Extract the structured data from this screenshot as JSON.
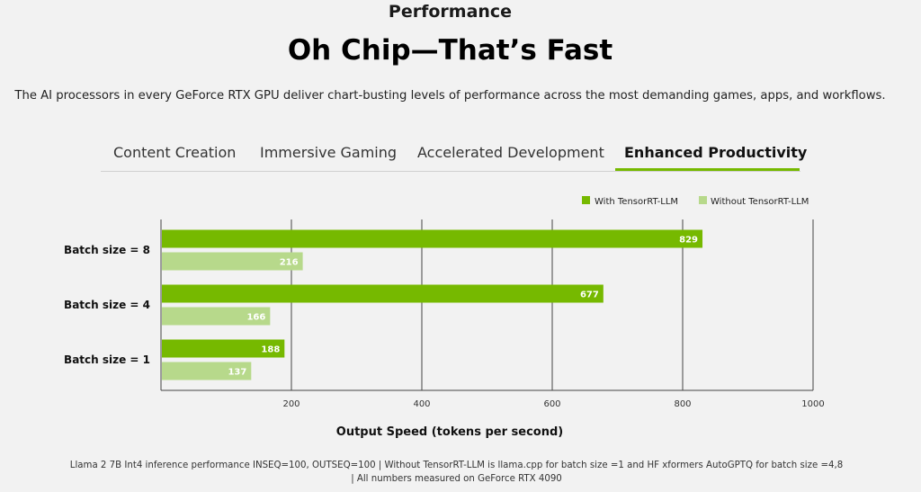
{
  "header": {
    "kicker": "Performance",
    "title": "Oh Chip—That’s Fast",
    "intro": "The AI processors in every GeForce RTX GPU deliver chart-busting levels of performance across the most demanding games, apps, and workflows."
  },
  "tabs": [
    {
      "label": "Content Creation",
      "active": false
    },
    {
      "label": "Immersive Gaming",
      "active": false
    },
    {
      "label": "Accelerated Development",
      "active": false
    },
    {
      "label": "Enhanced Productivity",
      "active": true
    }
  ],
  "colors": {
    "accent": "#76b900",
    "with": "#76b900",
    "without": "#b7d98b",
    "grid": "#444444"
  },
  "chart_data": {
    "type": "bar",
    "orientation": "horizontal",
    "categories": [
      "Batch size = 8",
      "Batch size = 4",
      "Batch size = 1"
    ],
    "series": [
      {
        "name": "With TensorRT-LLM",
        "values": [
          829,
          677,
          188
        ]
      },
      {
        "name": "Without TensorRT-LLM",
        "values": [
          216,
          166,
          137
        ]
      }
    ],
    "xlabel": "Output Speed (tokens per second)",
    "ylabel": "",
    "xlim": [
      0,
      1000
    ],
    "xticks": [
      200,
      400,
      600,
      800,
      1000
    ],
    "grid": true,
    "legend": "top-right"
  },
  "footnote": {
    "line1": "Llama 2 7B Int4 inference performance INSEQ=100, OUTSEQ=100 | Without TensorRT-LLM is llama.cpp for batch size =1 and HF xformers AutoGPTQ for batch size =4,8",
    "line2": "| All numbers measured on GeForce RTX 4090"
  }
}
